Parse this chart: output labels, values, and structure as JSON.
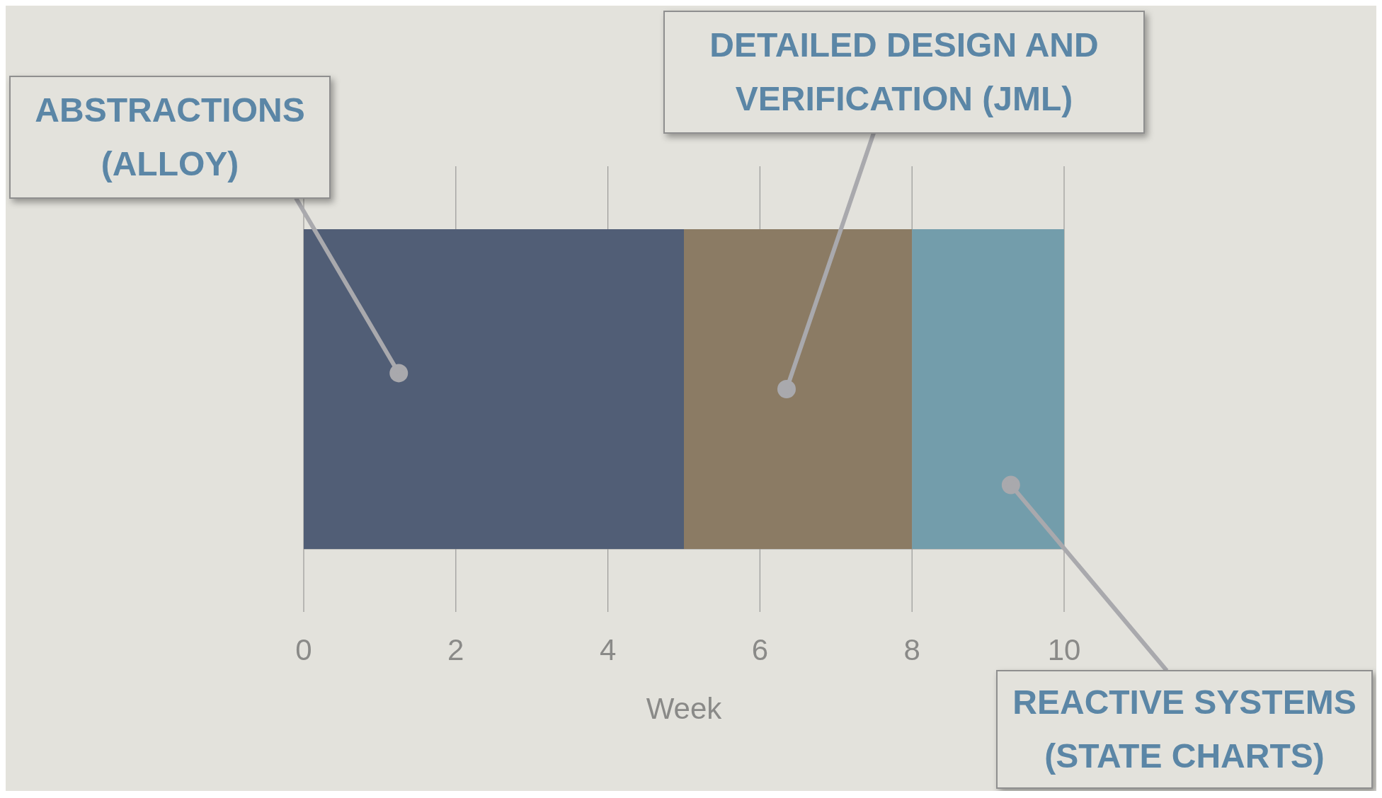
{
  "chart_data": {
    "type": "bar",
    "orientation": "horizontal",
    "stacked": true,
    "categories": [
      null
    ],
    "series": [
      {
        "name": "ABSTRACTIONS (ALLOY)",
        "color": "#515e76",
        "values": [
          5
        ]
      },
      {
        "name": "DETAILED DESIGN AND VERIFICATION (JML)",
        "color": "#8b7b64",
        "values": [
          3
        ]
      },
      {
        "name": "REACTIVE SYSTEMS (STATE CHARTS)",
        "color": "#739dab",
        "values": [
          2
        ]
      }
    ],
    "xlim": [
      0,
      10
    ],
    "xticks": [
      0,
      2,
      4,
      6,
      8,
      10
    ],
    "xlabel": "Week",
    "grid": "x",
    "legend": false,
    "tick_labels": "x"
  }
}
